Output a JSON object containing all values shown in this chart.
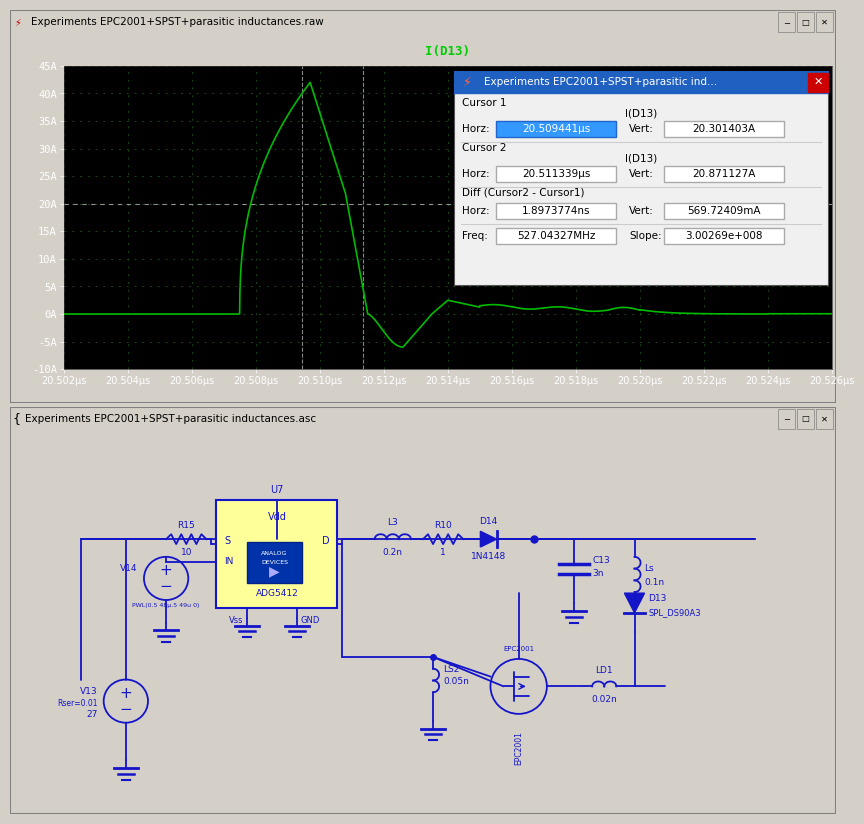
{
  "title_raw": "Experiments EPC2001+SPST+parasitic inductances.raw",
  "title_asc": "Experiments EPC2001+SPST+parasitic inductances.asc",
  "waveform_bg": "#000000",
  "waveform_fg": "#00bb00",
  "schematic_bg": "#c0c0c0",
  "titlebar_bg": "#d4d0c8",
  "x_start": 20.502,
  "x_end": 20.526,
  "y_min": -10,
  "y_max": 45,
  "x_ticks": [
    20.502,
    20.504,
    20.506,
    20.508,
    20.51,
    20.512,
    20.514,
    20.516,
    20.518,
    20.52,
    20.522,
    20.524,
    20.526
  ],
  "x_tick_labels": [
    "20.502μs",
    "20.504μs",
    "20.506μs",
    "20.508μs",
    "20.510μs",
    "20.512μs",
    "20.514μs",
    "20.516μs",
    "20.518μs",
    "20.520μs",
    "20.522μs",
    "20.524μs",
    "20.526μs"
  ],
  "y_ticks": [
    -10,
    -5,
    0,
    5,
    10,
    15,
    20,
    25,
    30,
    35,
    40,
    45
  ],
  "y_tick_labels": [
    "-10A",
    "-5A",
    "0A",
    "5A",
    "10A",
    "15A",
    "20A",
    "25A",
    "30A",
    "35A",
    "40A",
    "45A"
  ],
  "signal_label": "I(D13)",
  "popup_title": "Experiments EPC2001+SPST+parasitic ind...",
  "popup_cursor1_horz": "20.509441μs",
  "popup_cursor1_vert": "20.301403A",
  "popup_cursor2_horz": "20.511339μs",
  "popup_cursor2_vert": "20.871127A",
  "popup_diff_horz": "1.8973774ns",
  "popup_diff_vert": "569.72409mA",
  "popup_freq": "527.04327MHz",
  "popup_slope": "3.00269e+008",
  "cursor1_x": 20.509441,
  "cursor2_x": 20.511339,
  "blue": "#0000cc",
  "schematic_blue": "#1414c8"
}
